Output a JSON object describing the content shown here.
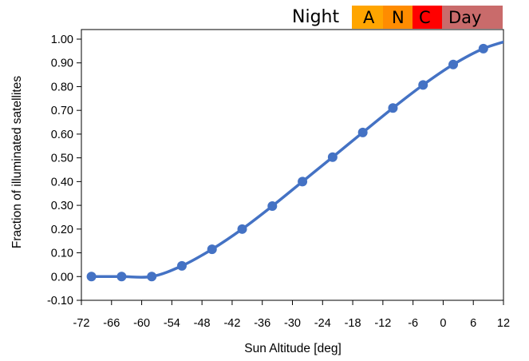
{
  "chart_data": {
    "type": "line",
    "title": "",
    "xlabel": "Sun Altitude [deg]",
    "ylabel": "Fraction of illuminated satellites",
    "xlim": [
      -72,
      12
    ],
    "ylim": [
      -0.1,
      1.0
    ],
    "x_ticks": [
      -72,
      -66,
      -60,
      -54,
      -48,
      -42,
      -36,
      -30,
      -24,
      -18,
      -12,
      -6,
      0,
      6,
      12
    ],
    "x_tick_labels": [
      "-72",
      "-66",
      "-60",
      "-54",
      "-48",
      "-42",
      "-36",
      "-30",
      "-24",
      "-18",
      "-12",
      "-6",
      "0",
      "6",
      "12"
    ],
    "y_ticks": [
      -0.1,
      0.0,
      0.1,
      0.2,
      0.3,
      0.4,
      0.5,
      0.6,
      0.7,
      0.8,
      0.9,
      1.0
    ],
    "y_tick_labels": [
      "-0.10",
      "0.00",
      "0.10",
      "0.20",
      "0.30",
      "0.40",
      "0.50",
      "0.60",
      "0.70",
      "0.80",
      "0.90",
      "1.00"
    ],
    "grid": false,
    "legend": "none",
    "series": [
      {
        "color": "#4472c4",
        "x": [
          -70,
          -64,
          -58,
          -52,
          -46,
          -40,
          -34,
          -28,
          -22,
          -16,
          -10,
          -4,
          2,
          8,
          14
        ],
        "y": [
          0.0,
          0.0,
          0.0,
          0.045,
          0.115,
          0.2,
          0.297,
          0.4,
          0.503,
          0.607,
          0.71,
          0.807,
          0.893,
          0.96,
          1.0
        ]
      }
    ],
    "twilight_bands": [
      {
        "label": "Night",
        "color": "#ffffff"
      },
      {
        "label": "A",
        "color": "#ffa500"
      },
      {
        "label": "N",
        "color": "#ff8c00"
      },
      {
        "label": "C",
        "color": "#ff0000"
      },
      {
        "label": "Day",
        "color": "#c96b6b"
      }
    ]
  }
}
